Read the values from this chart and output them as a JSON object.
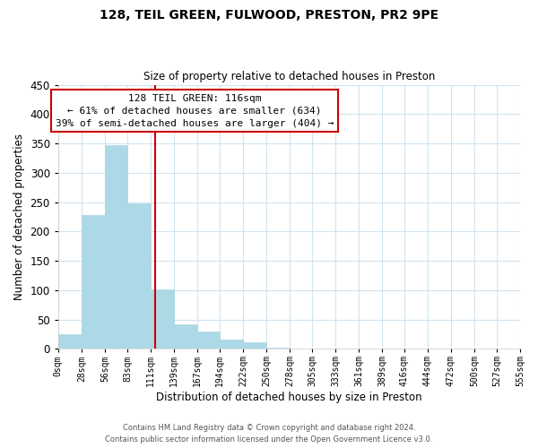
{
  "title": "128, TEIL GREEN, FULWOOD, PRESTON, PR2 9PE",
  "subtitle": "Size of property relative to detached houses in Preston",
  "xlabel": "Distribution of detached houses by size in Preston",
  "ylabel": "Number of detached properties",
  "bin_edges": [
    0,
    28,
    56,
    83,
    111,
    139,
    167,
    194,
    222,
    250,
    278,
    305,
    333,
    361,
    389,
    416,
    444,
    472,
    500,
    527,
    555
  ],
  "bar_heights": [
    25,
    228,
    347,
    248,
    101,
    41,
    30,
    16,
    11,
    2,
    0,
    0,
    0,
    0,
    0,
    0,
    0,
    0,
    0,
    1
  ],
  "bar_color": "#add8e6",
  "bar_edgecolor": "#add8e6",
  "property_line_x": 116,
  "property_line_color": "#cc0000",
  "annotation_title": "128 TEIL GREEN: 116sqm",
  "annotation_line1": "← 61% of detached houses are smaller (634)",
  "annotation_line2": "39% of semi-detached houses are larger (404) →",
  "ylim": [
    0,
    450
  ],
  "yticks": [
    0,
    50,
    100,
    150,
    200,
    250,
    300,
    350,
    400,
    450
  ],
  "xtick_labels": [
    "0sqm",
    "28sqm",
    "56sqm",
    "83sqm",
    "111sqm",
    "139sqm",
    "167sqm",
    "194sqm",
    "222sqm",
    "250sqm",
    "278sqm",
    "305sqm",
    "333sqm",
    "361sqm",
    "389sqm",
    "416sqm",
    "444sqm",
    "472sqm",
    "500sqm",
    "527sqm",
    "555sqm"
  ],
  "grid_color": "#d0e4f0",
  "footer_line1": "Contains HM Land Registry data © Crown copyright and database right 2024.",
  "footer_line2": "Contains public sector information licensed under the Open Government Licence v3.0.",
  "bg_color": "#ffffff"
}
